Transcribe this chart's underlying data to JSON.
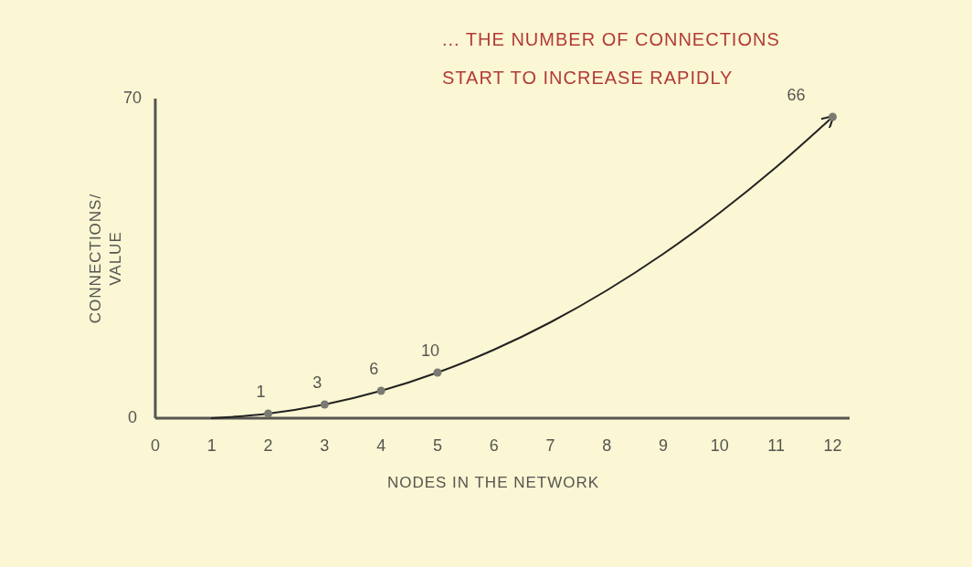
{
  "chart_data": {
    "type": "line",
    "xlabel": "NODES IN THE NETWORK",
    "ylabel": "CONNECTIONS/\nVALUE",
    "xlim": [
      0,
      12.3
    ],
    "xticks": [
      0,
      1,
      2,
      3,
      4,
      5,
      6,
      7,
      8,
      9,
      10,
      11,
      12
    ],
    "ylim": [
      0,
      70
    ],
    "yticks": [
      0,
      70
    ],
    "grid": false,
    "annotations": [
      "... THE NUMBER OF CONNECTIONS\nSTART TO INCREASE RAPIDLY"
    ],
    "series": [
      {
        "color": "#222222",
        "marker": "none",
        "x": [
          1,
          2,
          3,
          4,
          5,
          6,
          7,
          8,
          9,
          10,
          11,
          12
        ],
        "values": [
          0,
          1,
          3,
          6,
          10,
          15,
          21,
          28,
          36,
          45,
          55,
          66
        ]
      },
      {
        "type": "scatter",
        "color": "#7a7a72",
        "marker": "circle",
        "x": [
          2,
          3,
          4,
          5,
          12
        ],
        "values": [
          1,
          3,
          6,
          10,
          66
        ],
        "value_labels": [
          "1",
          "3",
          "6",
          "10",
          "66"
        ]
      }
    ]
  }
}
